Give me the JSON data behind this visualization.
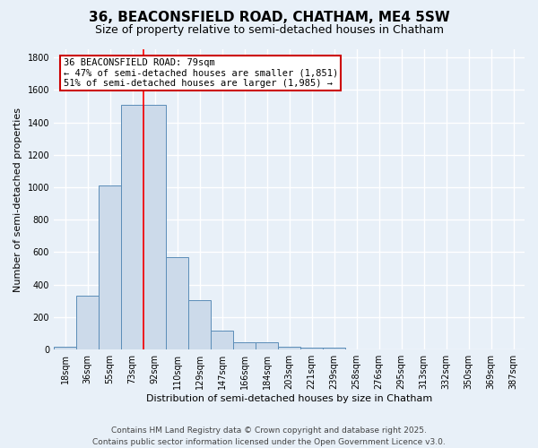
{
  "title_line1": "36, BEACONSFIELD ROAD, CHATHAM, ME4 5SW",
  "title_line2": "Size of property relative to semi-detached houses in Chatham",
  "xlabel": "Distribution of semi-detached houses by size in Chatham",
  "ylabel": "Number of semi-detached properties",
  "categories": [
    "18sqm",
    "36sqm",
    "55sqm",
    "73sqm",
    "92sqm",
    "110sqm",
    "129sqm",
    "147sqm",
    "166sqm",
    "184sqm",
    "203sqm",
    "221sqm",
    "239sqm",
    "258sqm",
    "276sqm",
    "295sqm",
    "313sqm",
    "332sqm",
    "350sqm",
    "369sqm",
    "387sqm"
  ],
  "values": [
    15,
    335,
    1010,
    1510,
    1510,
    570,
    305,
    115,
    48,
    48,
    18,
    10,
    10,
    0,
    0,
    0,
    0,
    0,
    0,
    0,
    0
  ],
  "bar_color": "#ccdaea",
  "bar_edge_color": "#5b8db8",
  "background_color": "#e8f0f8",
  "grid_color": "#ffffff",
  "red_line_x": 3.5,
  "annotation_text": "36 BEACONSFIELD ROAD: 79sqm\n← 47% of semi-detached houses are smaller (1,851)\n51% of semi-detached houses are larger (1,985) →",
  "annotation_box_color": "#ffffff",
  "annotation_box_edge": "#cc0000",
  "ylim": [
    0,
    1850
  ],
  "yticks": [
    0,
    200,
    400,
    600,
    800,
    1000,
    1200,
    1400,
    1600,
    1800
  ],
  "footer_line1": "Contains HM Land Registry data © Crown copyright and database right 2025.",
  "footer_line2": "Contains public sector information licensed under the Open Government Licence v3.0.",
  "title_fontsize": 11,
  "subtitle_fontsize": 9,
  "axis_label_fontsize": 8,
  "tick_fontsize": 7,
  "annotation_fontsize": 7.5,
  "footer_fontsize": 6.5
}
